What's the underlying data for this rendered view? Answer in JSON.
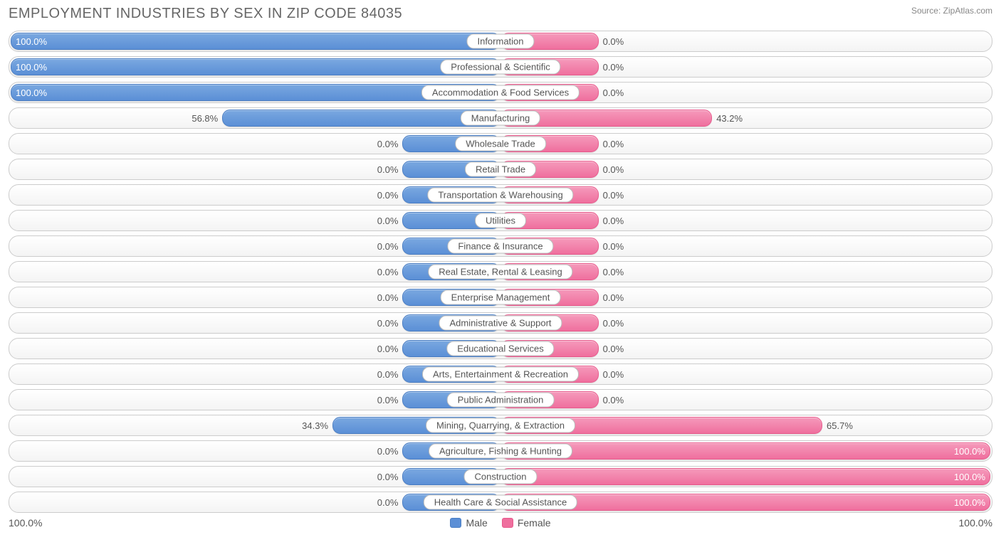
{
  "title": "EMPLOYMENT INDUSTRIES BY SEX IN ZIP CODE 84035",
  "source": "Source: ZipAtlas.com",
  "chart": {
    "type": "bidirectional-bar",
    "min_bar_pct": 20,
    "colors": {
      "male_fill": "#5b8fd6",
      "female_fill": "#ef6f9e",
      "row_border": "#cccccc",
      "background": "#ffffff",
      "text": "#555555"
    },
    "axis": {
      "left_label": "100.0%",
      "right_label": "100.0%"
    },
    "legend": {
      "male": "Male",
      "female": "Female"
    },
    "rows": [
      {
        "label": "Information",
        "male": 100.0,
        "female": 0.0
      },
      {
        "label": "Professional & Scientific",
        "male": 100.0,
        "female": 0.0
      },
      {
        "label": "Accommodation & Food Services",
        "male": 100.0,
        "female": 0.0
      },
      {
        "label": "Manufacturing",
        "male": 56.8,
        "female": 43.2
      },
      {
        "label": "Wholesale Trade",
        "male": 0.0,
        "female": 0.0
      },
      {
        "label": "Retail Trade",
        "male": 0.0,
        "female": 0.0
      },
      {
        "label": "Transportation & Warehousing",
        "male": 0.0,
        "female": 0.0
      },
      {
        "label": "Utilities",
        "male": 0.0,
        "female": 0.0
      },
      {
        "label": "Finance & Insurance",
        "male": 0.0,
        "female": 0.0
      },
      {
        "label": "Real Estate, Rental & Leasing",
        "male": 0.0,
        "female": 0.0
      },
      {
        "label": "Enterprise Management",
        "male": 0.0,
        "female": 0.0
      },
      {
        "label": "Administrative & Support",
        "male": 0.0,
        "female": 0.0
      },
      {
        "label": "Educational Services",
        "male": 0.0,
        "female": 0.0
      },
      {
        "label": "Arts, Entertainment & Recreation",
        "male": 0.0,
        "female": 0.0
      },
      {
        "label": "Public Administration",
        "male": 0.0,
        "female": 0.0
      },
      {
        "label": "Mining, Quarrying, & Extraction",
        "male": 34.3,
        "female": 65.7
      },
      {
        "label": "Agriculture, Fishing & Hunting",
        "male": 0.0,
        "female": 100.0
      },
      {
        "label": "Construction",
        "male": 0.0,
        "female": 100.0
      },
      {
        "label": "Health Care & Social Assistance",
        "male": 0.0,
        "female": 100.0
      }
    ]
  }
}
